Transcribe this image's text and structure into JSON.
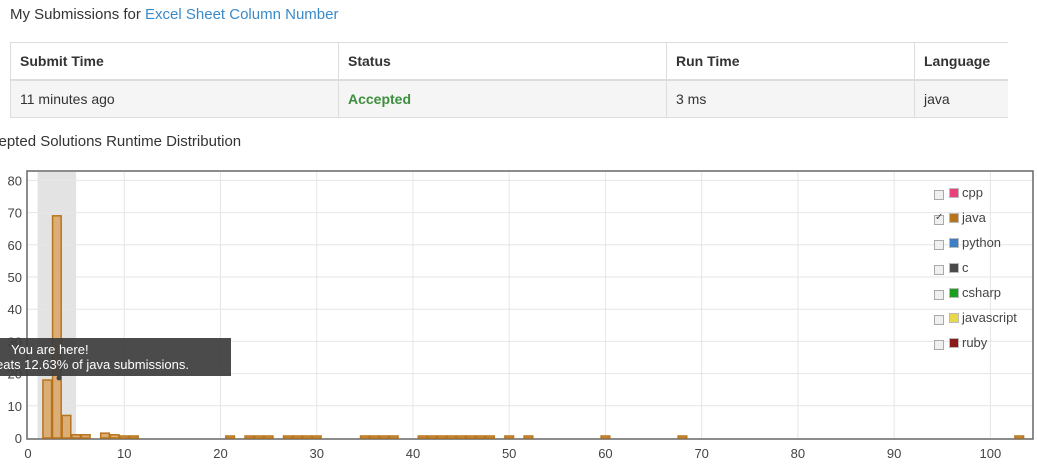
{
  "heading": {
    "prefix": "My Submissions for ",
    "link": "Excel Sheet Column Number"
  },
  "table": {
    "headers": [
      "Submit Time",
      "Status",
      "Run Time",
      "Language"
    ],
    "row": {
      "submit_time": "11 minutes ago",
      "status": "Accepted",
      "run_time": "3 ms",
      "language": "java"
    }
  },
  "distribution_title": "cepted Solutions Runtime Distribution",
  "tooltip": {
    "line1": "You are here!",
    "line2": "eats 12.63% of java submissions."
  },
  "legend": [
    {
      "label": "cpp",
      "color": "#e8417d",
      "checked": false
    },
    {
      "label": "java",
      "color": "#b8741a",
      "checked": true
    },
    {
      "label": "python",
      "color": "#3d7ec4",
      "checked": false
    },
    {
      "label": "c",
      "color": "#4a4a4a",
      "checked": false
    },
    {
      "label": "csharp",
      "color": "#1e9e1e",
      "checked": false
    },
    {
      "label": "javascript",
      "color": "#e8d84a",
      "checked": false
    },
    {
      "label": "ruby",
      "color": "#8a1a1a",
      "checked": false
    }
  ],
  "colors": {
    "bar_fill": "#dcae77",
    "bar_stroke": "#b8741a",
    "highlight": "#e3e3e3",
    "link": "#3a8ac8",
    "accepted": "#3c8f3c"
  },
  "chart_data": {
    "type": "bar",
    "series": [
      {
        "name": "java",
        "x": [
          2,
          3,
          4,
          5,
          6,
          8,
          9,
          10,
          11,
          21,
          23,
          24,
          25,
          27,
          28,
          29,
          30,
          35,
          36,
          37,
          38,
          41,
          42,
          43,
          44,
          45,
          46,
          47,
          48,
          50,
          52,
          60,
          68,
          103
        ],
        "values": [
          18,
          69,
          7,
          1,
          1,
          1.5,
          1,
          0.5,
          0.5,
          0.5,
          0.5,
          0.5,
          0.5,
          0.5,
          0.5,
          0.5,
          0.5,
          0.5,
          0.5,
          0.5,
          0.5,
          0.5,
          0.5,
          0.5,
          0.5,
          0.5,
          0.5,
          0.5,
          0.5,
          0.5,
          0.5,
          0.5,
          0.5,
          0.5
        ]
      }
    ],
    "xlim": [
      0,
      105
    ],
    "ylim": [
      0,
      82
    ],
    "x_ticks": [
      0,
      10,
      20,
      30,
      40,
      50,
      60,
      70,
      80,
      90,
      100
    ],
    "y_ticks": [
      0,
      10,
      20,
      30,
      40,
      50,
      60,
      70,
      80
    ],
    "highlight_range": [
      1,
      5
    ],
    "grid": true,
    "legend_position": "top-right"
  }
}
